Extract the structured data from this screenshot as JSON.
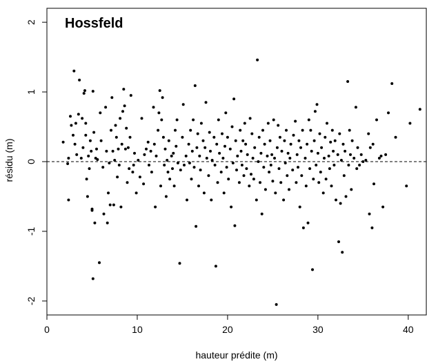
{
  "chart_data": {
    "type": "scatter",
    "title": "Hossfeld",
    "xlabel": "hauteur prédite (m)",
    "ylabel": "résidu (m)",
    "xlim": [
      0,
      42
    ],
    "ylim": [
      -2.2,
      2.2
    ],
    "x_ticks": [
      "0",
      "10",
      "20",
      "30",
      "40"
    ],
    "y_ticks": [
      "-2",
      "-1",
      "0",
      "1",
      "2"
    ],
    "reference_line": {
      "y": 0,
      "style": "dashed"
    },
    "grid": false,
    "marker_color": "#000000",
    "points": [
      [
        1.8,
        0.28
      ],
      [
        2.3,
        -0.03
      ],
      [
        2.4,
        0.05
      ],
      [
        2.4,
        -0.55
      ],
      [
        2.6,
        0.65
      ],
      [
        2.7,
        0.52
      ],
      [
        2.9,
        0.38
      ],
      [
        3.0,
        1.3
      ],
      [
        3.1,
        0.25
      ],
      [
        3.2,
        0.55
      ],
      [
        3.3,
        0.1
      ],
      [
        3.5,
        0.68
      ],
      [
        3.6,
        1.17
      ],
      [
        3.8,
        0.05
      ],
      [
        3.9,
        0.62
      ],
      [
        4.0,
        0.2
      ],
      [
        4.1,
        0.98
      ],
      [
        4.2,
        1.02
      ],
      [
        4.3,
        0.55
      ],
      [
        4.3,
        0.38
      ],
      [
        4.4,
        -0.25
      ],
      [
        4.5,
        -0.5
      ],
      [
        4.6,
        0.08
      ],
      [
        4.7,
        -0.1
      ],
      [
        4.8,
        0.3
      ],
      [
        4.9,
        0.15
      ],
      [
        5.0,
        -0.68
      ],
      [
        5.0,
        -0.7
      ],
      [
        5.1,
        1.01
      ],
      [
        5.1,
        -1.68
      ],
      [
        5.2,
        0.42
      ],
      [
        5.3,
        -0.88
      ],
      [
        5.4,
        0.05
      ],
      [
        5.5,
        0.18
      ],
      [
        5.6,
        0.03
      ],
      [
        5.8,
        -1.45
      ],
      [
        5.9,
        0.7
      ],
      [
        6.0,
        0.3
      ],
      [
        6.2,
        -0.08
      ],
      [
        6.3,
        -0.75
      ],
      [
        6.5,
        0.78
      ],
      [
        6.6,
        0.15
      ],
      [
        6.7,
        -0.88
      ],
      [
        6.8,
        -0.45
      ],
      [
        6.9,
        -0.02
      ],
      [
        7.0,
        -0.62
      ],
      [
        7.1,
        0.45
      ],
      [
        7.2,
        0.92
      ],
      [
        7.3,
        0.15
      ],
      [
        7.4,
        -0.62
      ],
      [
        7.5,
        0.02
      ],
      [
        7.6,
        0.52
      ],
      [
        7.7,
        0.35
      ],
      [
        7.8,
        -0.22
      ],
      [
        7.9,
        0.18
      ],
      [
        8.0,
        -0.05
      ],
      [
        8.1,
        0.62
      ],
      [
        8.2,
        -0.65
      ],
      [
        8.3,
        0.25
      ],
      [
        8.4,
        0.72
      ],
      [
        8.5,
        1.04
      ],
      [
        8.6,
        0.8
      ],
      [
        8.7,
        0.18
      ],
      [
        8.8,
        0.48
      ],
      [
        8.9,
        -0.3
      ],
      [
        9.0,
        0.2
      ],
      [
        9.1,
        -0.1
      ],
      [
        9.2,
        0.35
      ],
      [
        9.3,
        0.95
      ],
      [
        9.5,
        -0.15
      ],
      [
        9.6,
        -0.05
      ],
      [
        9.7,
        0.12
      ],
      [
        9.9,
        -0.45
      ],
      [
        10.1,
        0.02
      ],
      [
        10.3,
        -0.22
      ],
      [
        10.5,
        0.62
      ],
      [
        10.7,
        -0.32
      ],
      [
        10.8,
        0.1
      ],
      [
        11.0,
        0.18
      ],
      [
        11.2,
        0.28
      ],
      [
        11.3,
        -0.05
      ],
      [
        11.5,
        0.15
      ],
      [
        11.6,
        -0.15
      ],
      [
        11.8,
        0.78
      ],
      [
        11.9,
        0.25
      ],
      [
        12.0,
        -0.65
      ],
      [
        12.1,
        0.08
      ],
      [
        12.3,
        0.45
      ],
      [
        12.4,
        0.7
      ],
      [
        12.5,
        1.02
      ],
      [
        12.6,
        -0.35
      ],
      [
        12.7,
        0.6
      ],
      [
        12.8,
        0.92
      ],
      [
        12.9,
        0.35
      ],
      [
        13.0,
        -0.05
      ],
      [
        13.1,
        0.18
      ],
      [
        13.2,
        -0.5
      ],
      [
        13.3,
        0.02
      ],
      [
        13.4,
        -0.15
      ],
      [
        13.5,
        0.3
      ],
      [
        13.6,
        -0.25
      ],
      [
        13.8,
        0.08
      ],
      [
        13.9,
        -0.1
      ],
      [
        14.0,
        0.12
      ],
      [
        14.1,
        -0.35
      ],
      [
        14.2,
        0.45
      ],
      [
        14.3,
        0.22
      ],
      [
        14.4,
        0.6
      ],
      [
        14.5,
        -0.02
      ],
      [
        14.7,
        -1.46
      ],
      [
        14.8,
        -0.12
      ],
      [
        15.0,
        0.35
      ],
      [
        15.1,
        0.82
      ],
      [
        15.2,
        -0.05
      ],
      [
        15.4,
        0.08
      ],
      [
        15.5,
        -0.55
      ],
      [
        15.7,
        0.25
      ],
      [
        15.8,
        -0.02
      ],
      [
        15.9,
        0.45
      ],
      [
        16.0,
        -0.25
      ],
      [
        16.1,
        0.15
      ],
      [
        16.2,
        0.6
      ],
      [
        16.3,
        -0.08
      ],
      [
        16.4,
        1.09
      ],
      [
        16.5,
        -0.93
      ],
      [
        16.6,
        0.2
      ],
      [
        16.7,
        0.4
      ],
      [
        16.8,
        -0.35
      ],
      [
        16.9,
        0.08
      ],
      [
        17.0,
        -0.12
      ],
      [
        17.1,
        0.55
      ],
      [
        17.3,
        0.3
      ],
      [
        17.4,
        -0.45
      ],
      [
        17.5,
        0.2
      ],
      [
        17.6,
        0.85
      ],
      [
        17.7,
        0.05
      ],
      [
        17.9,
        -0.2
      ],
      [
        18.0,
        0.42
      ],
      [
        18.1,
        0.15
      ],
      [
        18.2,
        -0.55
      ],
      [
        18.3,
        0.02
      ],
      [
        18.5,
        0.35
      ],
      [
        18.6,
        -0.05
      ],
      [
        18.7,
        -1.5
      ],
      [
        18.8,
        0.25
      ],
      [
        18.9,
        -0.3
      ],
      [
        19.0,
        0.6
      ],
      [
        19.1,
        0.12
      ],
      [
        19.3,
        -0.15
      ],
      [
        19.4,
        0.4
      ],
      [
        19.5,
        0.05
      ],
      [
        19.6,
        -0.45
      ],
      [
        19.7,
        0.22
      ],
      [
        19.8,
        0.7
      ],
      [
        19.9,
        -0.08
      ],
      [
        20.0,
        0.35
      ],
      [
        20.1,
        -0.25
      ],
      [
        20.3,
        0.18
      ],
      [
        20.4,
        -0.65
      ],
      [
        20.5,
        0.5
      ],
      [
        20.6,
        -0.02
      ],
      [
        20.7,
        0.9
      ],
      [
        20.8,
        -0.92
      ],
      [
        20.9,
        0.3
      ],
      [
        21.0,
        -0.12
      ],
      [
        21.1,
        0.08
      ],
      [
        21.3,
        -0.3
      ],
      [
        21.4,
        0.45
      ],
      [
        21.5,
        0.15
      ],
      [
        21.6,
        -0.05
      ],
      [
        21.7,
        0.3
      ],
      [
        21.8,
        -0.2
      ],
      [
        21.9,
        0.55
      ],
      [
        22.0,
        0.25
      ],
      [
        22.1,
        -0.1
      ],
      [
        22.2,
        0.1
      ],
      [
        22.4,
        -0.35
      ],
      [
        22.5,
        0.62
      ],
      [
        22.6,
        -0.18
      ],
      [
        22.7,
        0.4
      ],
      [
        22.8,
        0.05
      ],
      [
        22.9,
        -0.25
      ],
      [
        23.0,
        0.2
      ],
      [
        23.2,
        -0.55
      ],
      [
        23.3,
        1.46
      ],
      [
        23.4,
        0.0
      ],
      [
        23.5,
        0.35
      ],
      [
        23.6,
        -0.3
      ],
      [
        23.7,
        0.12
      ],
      [
        23.8,
        -0.75
      ],
      [
        23.9,
        0.45
      ],
      [
        24.0,
        -0.08
      ],
      [
        24.1,
        0.25
      ],
      [
        24.2,
        -0.4
      ],
      [
        24.4,
        0.08
      ],
      [
        24.5,
        0.55
      ],
      [
        24.6,
        -0.15
      ],
      [
        24.7,
        0.3
      ],
      [
        24.8,
        -0.05
      ],
      [
        24.9,
        0.1
      ],
      [
        25.0,
        -0.28
      ],
      [
        25.1,
        0.6
      ],
      [
        25.2,
        0.05
      ],
      [
        25.3,
        -0.45
      ],
      [
        25.4,
        -2.05
      ],
      [
        25.5,
        0.2
      ],
      [
        25.6,
        0.52
      ],
      [
        25.7,
        -0.1
      ],
      [
        25.8,
        0.35
      ],
      [
        25.9,
        -0.3
      ],
      [
        26.0,
        0.15
      ],
      [
        26.2,
        -0.55
      ],
      [
        26.3,
        0.3
      ],
      [
        26.4,
        -0.02
      ],
      [
        26.5,
        0.45
      ],
      [
        26.6,
        -0.2
      ],
      [
        26.7,
        0.12
      ],
      [
        26.8,
        -0.4
      ],
      [
        26.9,
        0.05
      ],
      [
        27.0,
        0.25
      ],
      [
        27.2,
        -0.12
      ],
      [
        27.3,
        0.38
      ],
      [
        27.5,
        0.58
      ],
      [
        27.6,
        -0.3
      ],
      [
        27.7,
        0.1
      ],
      [
        27.8,
        -0.08
      ],
      [
        27.9,
        0.3
      ],
      [
        28.0,
        -0.65
      ],
      [
        28.1,
        0.2
      ],
      [
        28.2,
        -0.2
      ],
      [
        28.3,
        0.45
      ],
      [
        28.4,
        -0.95
      ],
      [
        28.6,
        0.05
      ],
      [
        28.7,
        -0.35
      ],
      [
        28.8,
        0.25
      ],
      [
        28.9,
        -0.88
      ],
      [
        29.0,
        0.6
      ],
      [
        29.1,
        -0.1
      ],
      [
        29.2,
        0.45
      ],
      [
        29.3,
        0.15
      ],
      [
        29.4,
        -1.55
      ],
      [
        29.5,
        -0.25
      ],
      [
        29.6,
        0.3
      ],
      [
        29.7,
        0.72
      ],
      [
        29.8,
        -0.05
      ],
      [
        29.9,
        0.82
      ],
      [
        30.0,
        0.12
      ],
      [
        30.1,
        -0.3
      ],
      [
        30.2,
        0.4
      ],
      [
        30.3,
        -0.15
      ],
      [
        30.4,
        0.2
      ],
      [
        30.6,
        -0.45
      ],
      [
        30.7,
        0.05
      ],
      [
        30.8,
        0.35
      ],
      [
        30.9,
        -0.25
      ],
      [
        31.0,
        0.55
      ],
      [
        31.2,
        0.08
      ],
      [
        31.3,
        -0.1
      ],
      [
        31.4,
        0.28
      ],
      [
        31.5,
        -0.35
      ],
      [
        31.6,
        0.45
      ],
      [
        31.7,
        0.15
      ],
      [
        31.8,
        -0.05
      ],
      [
        31.9,
        0.3
      ],
      [
        32.0,
        -0.55
      ],
      [
        32.2,
        0.1
      ],
      [
        32.3,
        -1.15
      ],
      [
        32.4,
        0.4
      ],
      [
        32.5,
        -0.6
      ],
      [
        32.6,
        0.02
      ],
      [
        32.7,
        -1.3
      ],
      [
        32.8,
        0.25
      ],
      [
        32.9,
        -0.2
      ],
      [
        33.0,
        0.15
      ],
      [
        33.1,
        -0.5
      ],
      [
        33.3,
        1.15
      ],
      [
        33.4,
        -0.05
      ],
      [
        33.5,
        0.45
      ],
      [
        33.6,
        0.1
      ],
      [
        33.7,
        -0.4
      ],
      [
        33.8,
        0.3
      ],
      [
        34.0,
        0.05
      ],
      [
        34.2,
        0.78
      ],
      [
        34.3,
        -0.1
      ],
      [
        34.4,
        0.2
      ],
      [
        34.6,
        -0.05
      ],
      [
        34.8,
        0.1
      ],
      [
        35.0,
        0.0
      ],
      [
        35.3,
        0.02
      ],
      [
        35.6,
        0.4
      ],
      [
        35.7,
        -0.75
      ],
      [
        35.8,
        0.2
      ],
      [
        36.0,
        -0.95
      ],
      [
        36.1,
        0.25
      ],
      [
        36.2,
        -0.32
      ],
      [
        36.5,
        0.6
      ],
      [
        36.8,
        0.05
      ],
      [
        37.0,
        0.08
      ],
      [
        37.2,
        -0.65
      ],
      [
        37.5,
        0.1
      ],
      [
        37.8,
        0.7
      ],
      [
        38.2,
        1.12
      ],
      [
        38.6,
        0.35
      ],
      [
        39.8,
        -0.35
      ],
      [
        40.2,
        0.55
      ],
      [
        41.3,
        0.75
      ]
    ]
  }
}
